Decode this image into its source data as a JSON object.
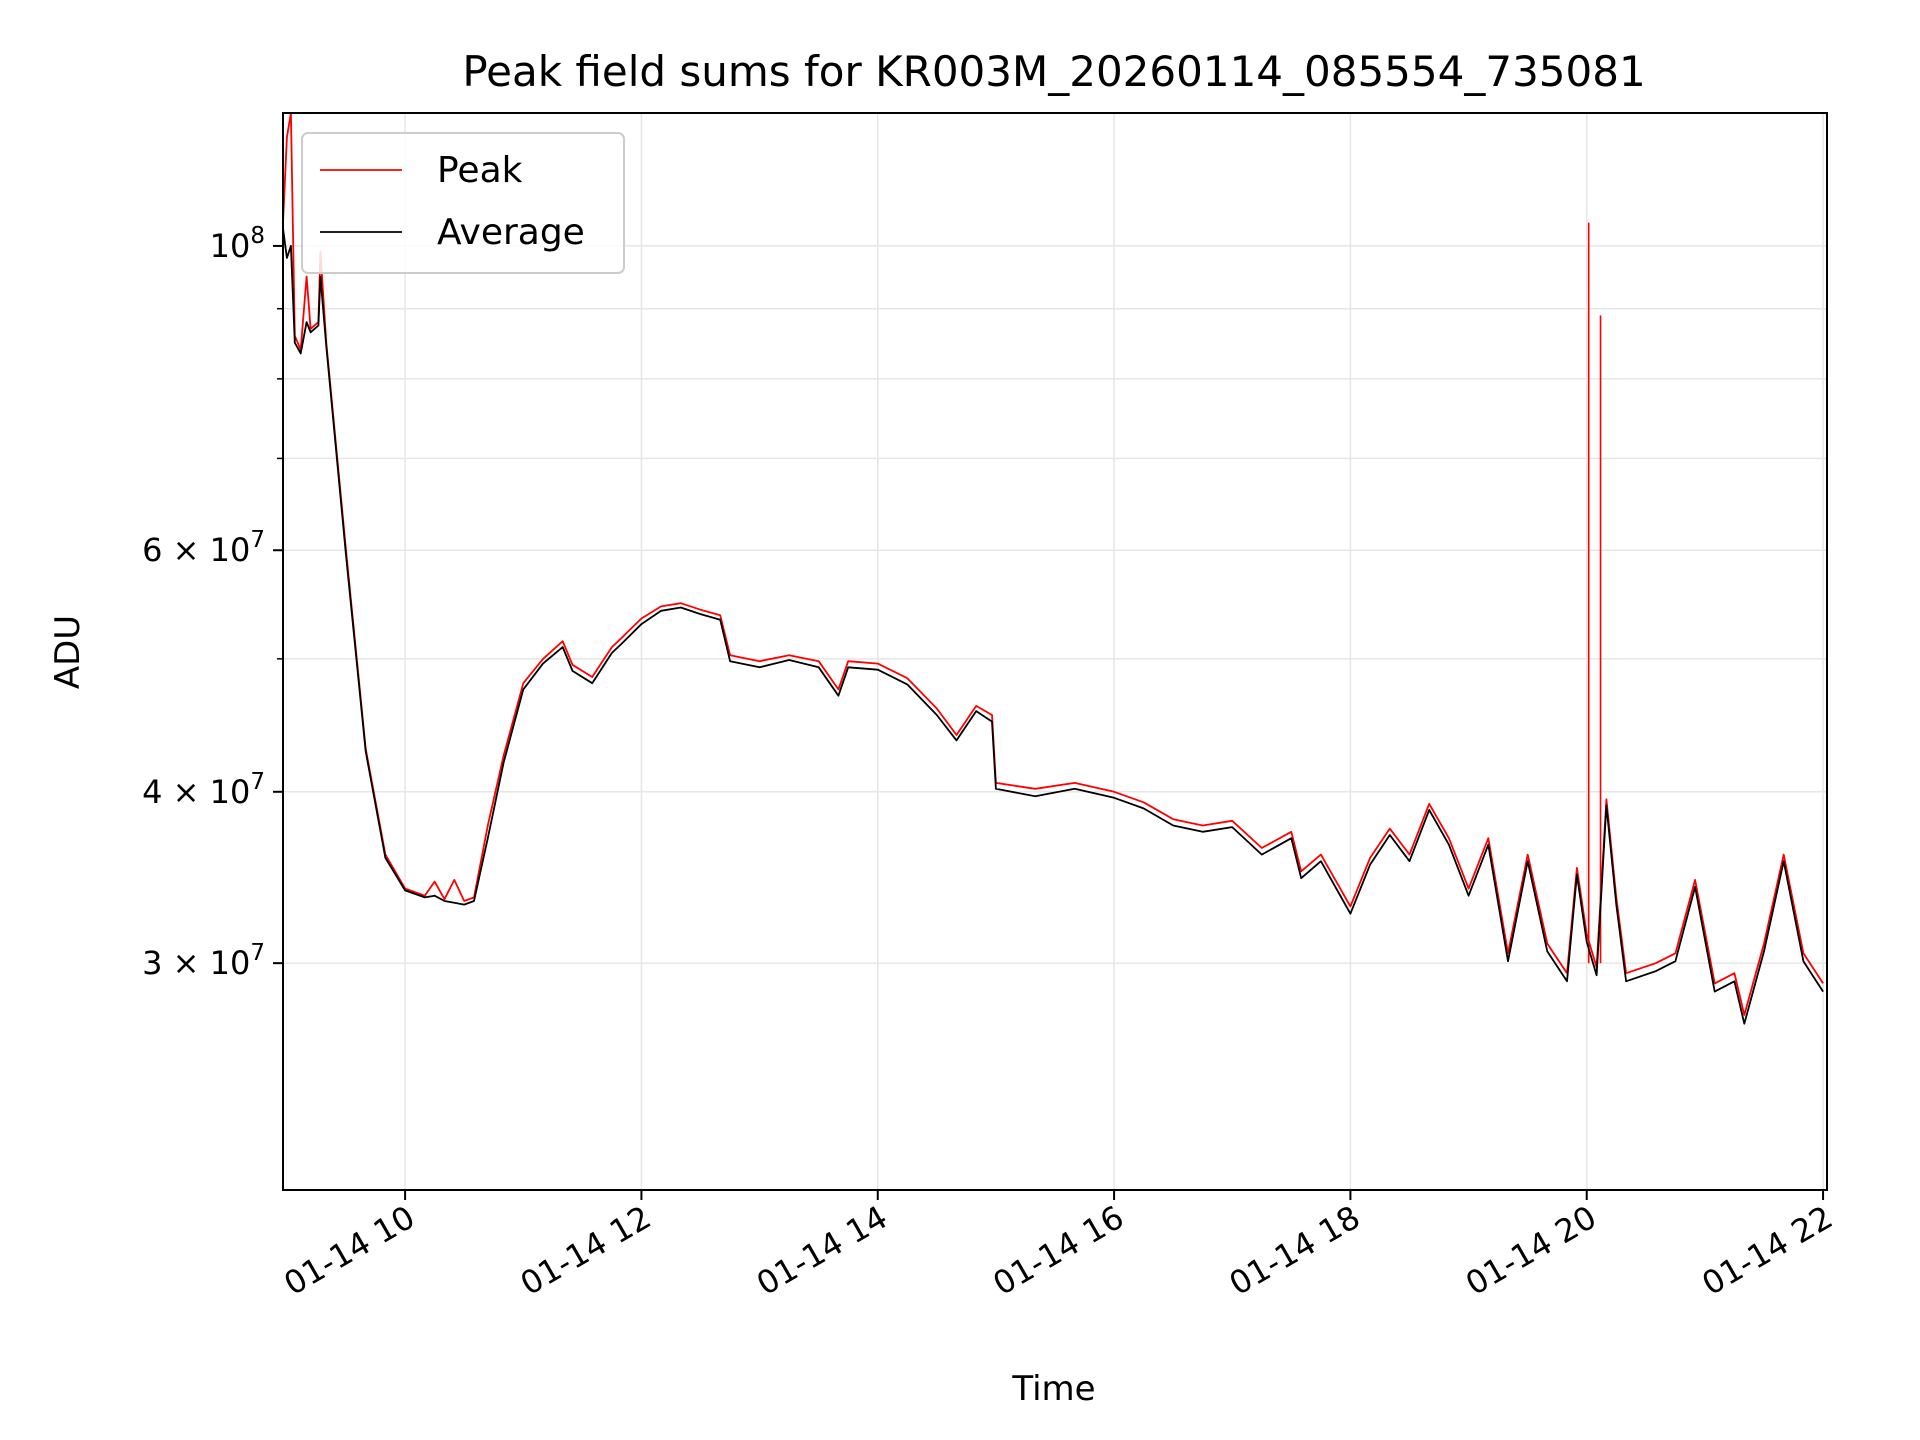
{
  "chart_data": {
    "type": "line",
    "title": "Peak field sums for KR003M_20260114_085554_735081",
    "xlabel": "Time",
    "ylabel": "ADU",
    "y_scale": "log",
    "grid": true,
    "legend_position": "top-left",
    "xlim": [
      "01-14 08:58",
      "01-14 22:02"
    ],
    "ylim": [
      20500000,
      125000000
    ],
    "x_ticks": [
      "01-14 10",
      "01-14 12",
      "01-14 14",
      "01-14 16",
      "01-14 18",
      "01-14 20",
      "01-14 22"
    ],
    "y_major_ticks": [
      {
        "value": 100000000,
        "base": "10",
        "exp": "8",
        "mantissa": ""
      },
      {
        "value": 60000000,
        "base": "10",
        "exp": "7",
        "mantissa": "6"
      },
      {
        "value": 40000000,
        "base": "10",
        "exp": "7",
        "mantissa": "4"
      },
      {
        "value": 30000000,
        "base": "10",
        "exp": "7",
        "mantissa": "3"
      }
    ],
    "y_minor_ticks": [
      50000000,
      70000000,
      80000000,
      90000000
    ],
    "series": [
      {
        "name": "Peak",
        "color": "#ff0000",
        "points": [
          [
            "01-14 08:58",
            104000000
          ],
          [
            "01-14 09:00",
            120000000
          ],
          [
            "01-14 09:02",
            125000000
          ],
          [
            "01-14 09:04",
            86000000
          ],
          [
            "01-14 09:07",
            84000000
          ],
          [
            "01-14 09:10",
            95000000
          ],
          [
            "01-14 09:12",
            87000000
          ],
          [
            "01-14 09:16",
            88000000
          ],
          [
            "01-14 09:17",
            99000000
          ],
          [
            "01-14 09:20",
            85000000
          ],
          [
            "01-14 09:30",
            60000000
          ],
          [
            "01-14 09:40",
            43000000
          ],
          [
            "01-14 09:50",
            36000000
          ],
          [
            "01-14 10:00",
            34000000
          ],
          [
            "01-14 10:10",
            33600000
          ],
          [
            "01-14 10:15",
            34400000
          ],
          [
            "01-14 10:20",
            33400000
          ],
          [
            "01-14 10:25",
            34500000
          ],
          [
            "01-14 10:30",
            33300000
          ],
          [
            "01-14 10:35",
            33500000
          ],
          [
            "01-14 10:42",
            37800000
          ],
          [
            "01-14 10:50",
            42500000
          ],
          [
            "01-14 11:00",
            48000000
          ],
          [
            "01-14 11:10",
            50000000
          ],
          [
            "01-14 11:20",
            51500000
          ],
          [
            "01-14 11:25",
            49500000
          ],
          [
            "01-14 11:35",
            48500000
          ],
          [
            "01-14 11:45",
            51000000
          ],
          [
            "01-14 11:50",
            51800000
          ],
          [
            "01-14 12:00",
            53500000
          ],
          [
            "01-14 12:10",
            54600000
          ],
          [
            "01-14 12:20",
            54900000
          ],
          [
            "01-14 12:30",
            54300000
          ],
          [
            "01-14 12:40",
            53800000
          ],
          [
            "01-14 12:45",
            50300000
          ],
          [
            "01-14 13:00",
            49800000
          ],
          [
            "01-14 13:15",
            50300000
          ],
          [
            "01-14 13:30",
            49800000
          ],
          [
            "01-14 13:40",
            47500000
          ],
          [
            "01-14 13:45",
            49800000
          ],
          [
            "01-14 14:00",
            49600000
          ],
          [
            "01-14 14:15",
            48400000
          ],
          [
            "01-14 14:30",
            46000000
          ],
          [
            "01-14 14:40",
            44000000
          ],
          [
            "01-14 14:50",
            46200000
          ],
          [
            "01-14 14:58",
            45500000
          ],
          [
            "01-14 15:00",
            40600000
          ],
          [
            "01-14 15:20",
            40200000
          ],
          [
            "01-14 15:40",
            40600000
          ],
          [
            "01-14 16:00",
            40000000
          ],
          [
            "01-14 16:15",
            39300000
          ],
          [
            "01-14 16:30",
            38200000
          ],
          [
            "01-14 16:45",
            37800000
          ],
          [
            "01-14 17:00",
            38100000
          ],
          [
            "01-14 17:15",
            36400000
          ],
          [
            "01-14 17:30",
            37400000
          ],
          [
            "01-14 17:35",
            35000000
          ],
          [
            "01-14 17:45",
            36000000
          ],
          [
            "01-14 18:00",
            33000000
          ],
          [
            "01-14 18:10",
            35800000
          ],
          [
            "01-14 18:20",
            37600000
          ],
          [
            "01-14 18:30",
            36000000
          ],
          [
            "01-14 18:40",
            39200000
          ],
          [
            "01-14 18:50",
            37000000
          ],
          [
            "01-14 19:00",
            34000000
          ],
          [
            "01-14 19:10",
            37000000
          ],
          [
            "01-14 19:20",
            30500000
          ],
          [
            "01-14 19:30",
            36000000
          ],
          [
            "01-14 19:40",
            31000000
          ],
          [
            "01-14 19:50",
            29500000
          ],
          [
            "01-14 19:55",
            35200000
          ],
          [
            "01-14 20:00",
            31500000
          ],
          [
            "01-14 20:05",
            29800000
          ],
          [
            "01-14 20:10",
            39500000
          ],
          [
            "01-14 20:15",
            33500000
          ],
          [
            "01-14 20:20",
            29500000
          ],
          [
            "01-14 20:35",
            30000000
          ],
          [
            "01-14 20:45",
            30500000
          ],
          [
            "01-14 20:55",
            34500000
          ],
          [
            "01-14 21:05",
            29000000
          ],
          [
            "01-14 21:15",
            29500000
          ],
          [
            "01-14 21:20",
            27500000
          ],
          [
            "01-14 21:30",
            31000000
          ],
          [
            "01-14 21:40",
            36000000
          ],
          [
            "01-14 21:50",
            30500000
          ],
          [
            "01-14 22:00",
            29000000
          ]
        ],
        "spikes": [
          [
            "01-14 20:01",
            104000000
          ],
          [
            "01-14 20:07",
            89000000
          ]
        ]
      },
      {
        "name": "Average",
        "color": "#000000",
        "points": [
          [
            "01-14 08:58",
            103000000
          ],
          [
            "01-14 09:00",
            98000000
          ],
          [
            "01-14 09:02",
            100000000
          ],
          [
            "01-14 09:04",
            85000000
          ],
          [
            "01-14 09:07",
            83500000
          ],
          [
            "01-14 09:10",
            88000000
          ],
          [
            "01-14 09:12",
            86500000
          ],
          [
            "01-14 09:16",
            87500000
          ],
          [
            "01-14 09:17",
            95000000
          ],
          [
            "01-14 09:20",
            84500000
          ],
          [
            "01-14 09:30",
            59500000
          ],
          [
            "01-14 09:40",
            42800000
          ],
          [
            "01-14 09:50",
            35800000
          ],
          [
            "01-14 10:00",
            33900000
          ],
          [
            "01-14 10:10",
            33500000
          ],
          [
            "01-14 10:15",
            33600000
          ],
          [
            "01-14 10:20",
            33300000
          ],
          [
            "01-14 10:25",
            33200000
          ],
          [
            "01-14 10:30",
            33100000
          ],
          [
            "01-14 10:35",
            33300000
          ],
          [
            "01-14 10:42",
            37000000
          ],
          [
            "01-14 10:50",
            42000000
          ],
          [
            "01-14 11:00",
            47500000
          ],
          [
            "01-14 11:10",
            49600000
          ],
          [
            "01-14 11:20",
            51000000
          ],
          [
            "01-14 11:25",
            49000000
          ],
          [
            "01-14 11:35",
            48000000
          ],
          [
            "01-14 11:45",
            50500000
          ],
          [
            "01-14 11:50",
            51300000
          ],
          [
            "01-14 12:00",
            53000000
          ],
          [
            "01-14 12:10",
            54200000
          ],
          [
            "01-14 12:20",
            54500000
          ],
          [
            "01-14 12:30",
            53900000
          ],
          [
            "01-14 12:40",
            53400000
          ],
          [
            "01-14 12:45",
            49800000
          ],
          [
            "01-14 13:00",
            49300000
          ],
          [
            "01-14 13:15",
            49900000
          ],
          [
            "01-14 13:30",
            49300000
          ],
          [
            "01-14 13:40",
            47000000
          ],
          [
            "01-14 13:45",
            49300000
          ],
          [
            "01-14 14:00",
            49100000
          ],
          [
            "01-14 14:15",
            47900000
          ],
          [
            "01-14 14:30",
            45500000
          ],
          [
            "01-14 14:40",
            43600000
          ],
          [
            "01-14 14:50",
            45800000
          ],
          [
            "01-14 14:58",
            45000000
          ],
          [
            "01-14 15:00",
            40200000
          ],
          [
            "01-14 15:20",
            39700000
          ],
          [
            "01-14 15:40",
            40200000
          ],
          [
            "01-14 16:00",
            39600000
          ],
          [
            "01-14 16:15",
            38900000
          ],
          [
            "01-14 16:30",
            37800000
          ],
          [
            "01-14 16:45",
            37400000
          ],
          [
            "01-14 17:00",
            37700000
          ],
          [
            "01-14 17:15",
            36000000
          ],
          [
            "01-14 17:30",
            37000000
          ],
          [
            "01-14 17:35",
            34600000
          ],
          [
            "01-14 17:45",
            35600000
          ],
          [
            "01-14 18:00",
            32600000
          ],
          [
            "01-14 18:10",
            35400000
          ],
          [
            "01-14 18:20",
            37200000
          ],
          [
            "01-14 18:30",
            35600000
          ],
          [
            "01-14 18:40",
            38800000
          ],
          [
            "01-14 18:50",
            36600000
          ],
          [
            "01-14 19:00",
            33600000
          ],
          [
            "01-14 19:10",
            36600000
          ],
          [
            "01-14 19:20",
            30100000
          ],
          [
            "01-14 19:30",
            35600000
          ],
          [
            "01-14 19:40",
            30600000
          ],
          [
            "01-14 19:50",
            29100000
          ],
          [
            "01-14 19:55",
            34800000
          ],
          [
            "01-14 20:00",
            31100000
          ],
          [
            "01-14 20:05",
            29400000
          ],
          [
            "01-14 20:10",
            39100000
          ],
          [
            "01-14 20:15",
            33100000
          ],
          [
            "01-14 20:20",
            29100000
          ],
          [
            "01-14 20:35",
            29600000
          ],
          [
            "01-14 20:45",
            30100000
          ],
          [
            "01-14 20:55",
            34100000
          ],
          [
            "01-14 21:05",
            28600000
          ],
          [
            "01-14 21:15",
            29100000
          ],
          [
            "01-14 21:20",
            27100000
          ],
          [
            "01-14 21:30",
            30600000
          ],
          [
            "01-14 21:40",
            35600000
          ],
          [
            "01-14 21:50",
            30100000
          ],
          [
            "01-14 22:00",
            28600000
          ]
        ]
      }
    ]
  }
}
